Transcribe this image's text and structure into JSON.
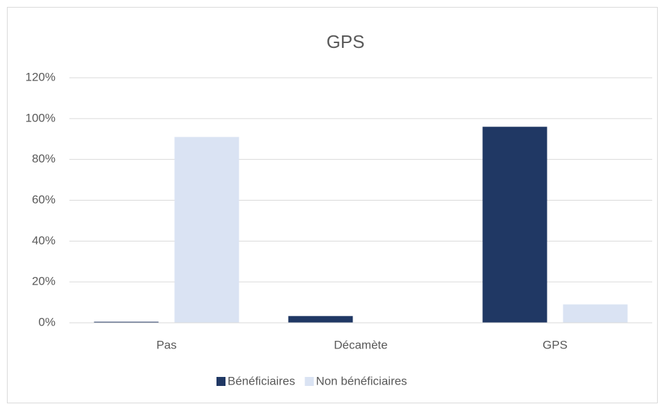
{
  "chart_data": {
    "type": "bar",
    "title": "GPS",
    "categories": [
      "Pas",
      "Décamète",
      "GPS"
    ],
    "series": [
      {
        "name": "Bénéficiaires",
        "color": "#203864",
        "values": [
          0.5,
          3.3,
          96
        ]
      },
      {
        "name": "Non bénéficiaires",
        "color": "#dae3f3",
        "values": [
          91,
          0,
          9
        ]
      }
    ],
    "ylim": [
      0,
      120
    ],
    "yticks": [
      {
        "value": 0,
        "label": "0%"
      },
      {
        "value": 20,
        "label": "20%"
      },
      {
        "value": 40,
        "label": "40%"
      },
      {
        "value": 60,
        "label": "60%"
      },
      {
        "value": 80,
        "label": "80%"
      },
      {
        "value": 100,
        "label": "100%"
      },
      {
        "value": 120,
        "label": "120%"
      }
    ],
    "grid": true,
    "legend": "bottom"
  }
}
